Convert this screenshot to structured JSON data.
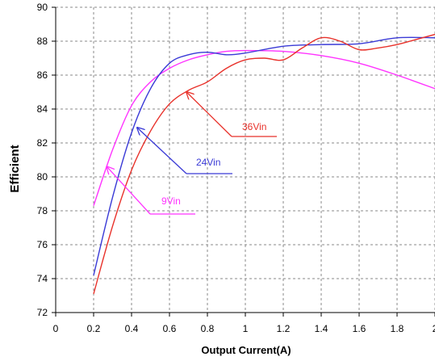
{
  "chart_data": {
    "type": "line",
    "title": "",
    "xlabel": "Output Current(A)",
    "ylabel": "Efficient",
    "xlim": [
      0,
      2
    ],
    "ylim": [
      72,
      90
    ],
    "x_ticks": [
      0,
      0.2,
      0.4,
      0.6,
      0.8,
      1,
      1.2,
      1.4,
      1.6,
      1.8,
      2
    ],
    "x_tick_labels": [
      "0",
      "0.2",
      "0.4",
      "0.6",
      "0.8",
      "1",
      "1.2",
      "1.4",
      "1.6",
      "1.8",
      "2"
    ],
    "y_ticks": [
      72,
      74,
      76,
      78,
      80,
      82,
      84,
      86,
      88,
      90
    ],
    "y_tick_labels": [
      "72",
      "74",
      "76",
      "78",
      "80",
      "82",
      "84",
      "86",
      "88",
      "90"
    ],
    "grid": true,
    "grid_style": "dashed",
    "series": [
      {
        "name": "9Vin",
        "color": "#ff33ff",
        "x": [
          0.2,
          0.3,
          0.4,
          0.5,
          0.6,
          0.7,
          0.8,
          0.9,
          1.0,
          1.2,
          1.4,
          1.6,
          1.8,
          2.0
        ],
        "y": [
          78.3,
          81.6,
          84.2,
          85.6,
          86.4,
          86.9,
          87.2,
          87.4,
          87.45,
          87.4,
          87.15,
          86.7,
          86.0,
          85.2
        ]
      },
      {
        "name": "24Vin",
        "color": "#3a3ad6",
        "x": [
          0.2,
          0.3,
          0.4,
          0.5,
          0.6,
          0.7,
          0.8,
          0.9,
          1.0,
          1.2,
          1.4,
          1.6,
          1.8,
          2.0
        ],
        "y": [
          74.2,
          78.8,
          82.6,
          85.2,
          86.7,
          87.2,
          87.35,
          87.2,
          87.3,
          87.7,
          87.8,
          87.85,
          88.2,
          88.2
        ]
      },
      {
        "name": "36Vin",
        "color": "#e8312a",
        "x": [
          0.2,
          0.3,
          0.4,
          0.5,
          0.6,
          0.7,
          0.8,
          0.9,
          1.0,
          1.1,
          1.2,
          1.3,
          1.4,
          1.5,
          1.6,
          1.7,
          1.8,
          1.9,
          2.0
        ],
        "y": [
          73.1,
          77.1,
          80.4,
          82.7,
          84.3,
          85.1,
          85.6,
          86.4,
          86.9,
          87.0,
          86.9,
          87.6,
          88.2,
          88.0,
          87.5,
          87.6,
          87.8,
          88.1,
          88.4
        ]
      }
    ],
    "annotations": [
      {
        "text": "9Vin",
        "color": "#ff33ff"
      },
      {
        "text": "24Vin",
        "color": "#3a3ad6"
      },
      {
        "text": "36Vin",
        "color": "#e8312a"
      }
    ]
  }
}
